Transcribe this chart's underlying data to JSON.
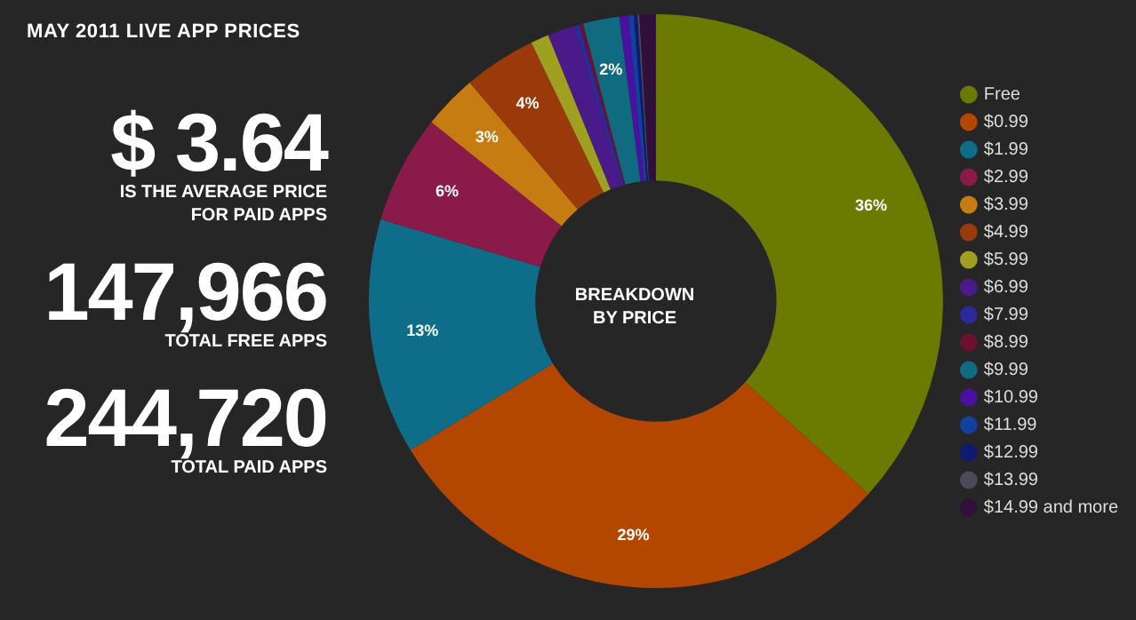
{
  "chart_data": {
    "type": "donut",
    "title": "MAY 2011 LIVE APP PRICES",
    "categories": [
      "Free",
      "$0.99",
      "$1.99",
      "$2.99",
      "$3.99",
      "$4.99",
      "$5.99",
      "$6.99",
      "$7.99",
      "$8.99",
      "$9.99",
      "$10.99",
      "$11.99",
      "$12.99",
      "$13.99",
      "$14.99 and more"
    ],
    "values": [
      36,
      29,
      13,
      6,
      3,
      4,
      1,
      1.5,
      0.3,
      0.2,
      2,
      0.5,
      0.3,
      0.2,
      0.1,
      0.9
    ],
    "value_labels": [
      "36%",
      "29%",
      "13%",
      "6%",
      "3%",
      "4%",
      null,
      null,
      null,
      null,
      "2%",
      null,
      null,
      null,
      null,
      null
    ],
    "colors": [
      "#6b7a00",
      "#b34700",
      "#0e6e8a",
      "#8a1a4a",
      "#c67c10",
      "#9a3a0a",
      "#a0a020",
      "#4a1a8a",
      "#2a2a9a",
      "#6a1030",
      "#106a80",
      "#4a10a0",
      "#1040a0",
      "#101a70",
      "#4a4a58",
      "#30103a"
    ],
    "legend": "right",
    "annotations": [
      "$ 3.64",
      "IS THE AVERAGE PRICE\nFOR PAID APPS",
      "147,966",
      "TOTAL FREE APPS",
      "244,720",
      "TOTAL PAID APPS",
      "BREAKDOWN\nBY PRICE"
    ]
  }
}
